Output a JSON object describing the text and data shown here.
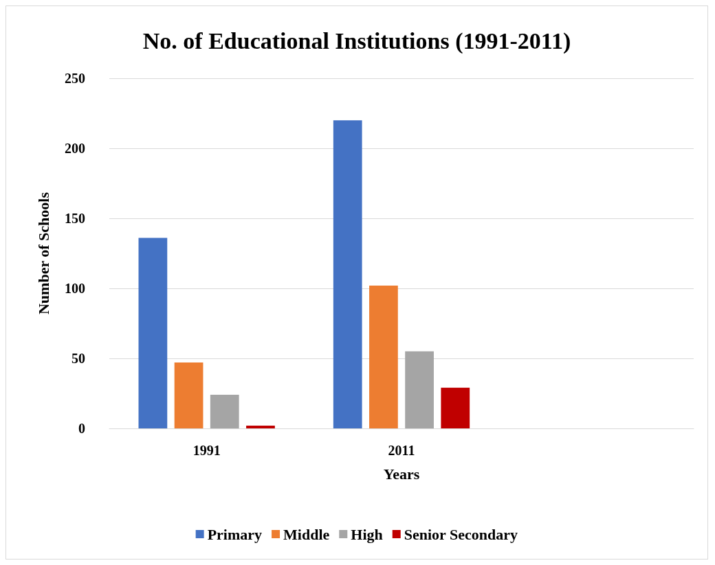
{
  "chart_data": {
    "type": "bar",
    "title": "No. of Educational Institutions (1991-2011)",
    "xlabel": "Years",
    "ylabel": "Number of Schools",
    "categories": [
      "1991",
      "2011",
      null
    ],
    "series": [
      {
        "name": "Primary",
        "color": "#4472c4",
        "values": [
          136,
          220,
          null
        ]
      },
      {
        "name": "Middle",
        "color": "#ed7d31",
        "values": [
          47,
          102,
          null
        ]
      },
      {
        "name": "High",
        "color": "#a5a5a5",
        "values": [
          24,
          55,
          null
        ]
      },
      {
        "name": "Senior Secondary",
        "color": "#c00000",
        "values": [
          2,
          29,
          null
        ]
      }
    ],
    "ylim": [
      0,
      250
    ],
    "yticks": [
      0,
      50,
      100,
      150,
      200,
      250
    ],
    "grid": "y",
    "legend": "bottom"
  }
}
